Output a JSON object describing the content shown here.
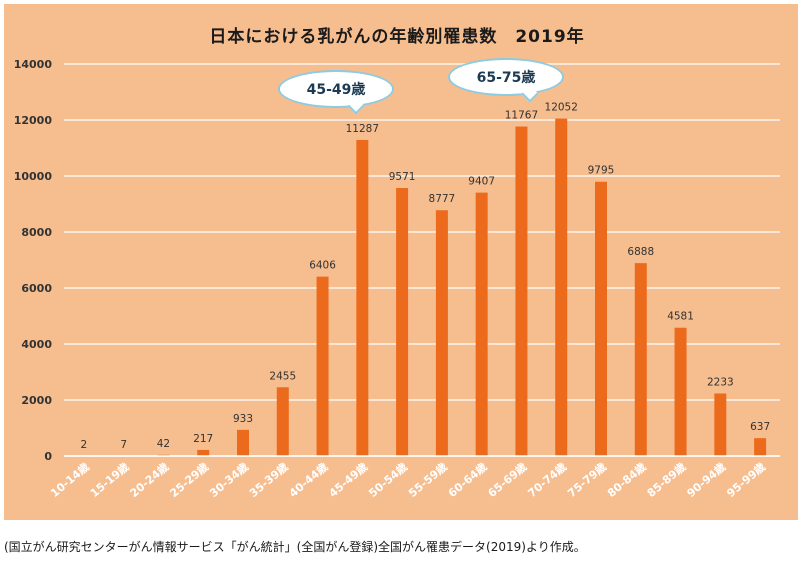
{
  "chart_data": {
    "type": "bar",
    "title": "日本における乳がんの年齢別罹患数　2019年",
    "categories": [
      "10-14歳",
      "15-19歳",
      "20-24歳",
      "25-29歳",
      "30-34歳",
      "35-39歳",
      "40-44歳",
      "45-49歳",
      "50-54歳",
      "55-59歳",
      "60-64歳",
      "65-69歳",
      "70-74歳",
      "75-79歳",
      "80-84歳",
      "85-89歳",
      "90-94歳",
      "95-99歳"
    ],
    "values": [
      2,
      7,
      42,
      217,
      933,
      2455,
      6406,
      11287,
      9571,
      8777,
      9407,
      11767,
      12052,
      9795,
      6888,
      4581,
      2233,
      637
    ],
    "data_labels": [
      "2",
      "7",
      "42",
      "217",
      "933",
      "2455",
      "6406",
      "11287",
      "9571",
      "8777",
      "9407",
      "11767",
      "12052",
      "9795",
      "6888",
      "4581",
      "2233",
      "637"
    ],
    "yticks": [
      "0",
      "2000",
      "4000",
      "6000",
      "8000",
      "10000",
      "12000",
      "14000"
    ],
    "ylim": [
      0,
      14000
    ],
    "xlabel": "",
    "ylabel": "",
    "grid": true,
    "legend": "none",
    "bar_color": "#ec6a1c",
    "background_color": "#f6bd8f",
    "annotations": [
      {
        "text": "45-49歳",
        "style": "speech-bubble"
      },
      {
        "text": "65-75歳",
        "style": "speech-bubble"
      }
    ]
  },
  "caption": "(国立がん研究センターがん情報サービス「がん統計」(全国がん登録)全国がん罹患データ(2019)より作成。"
}
